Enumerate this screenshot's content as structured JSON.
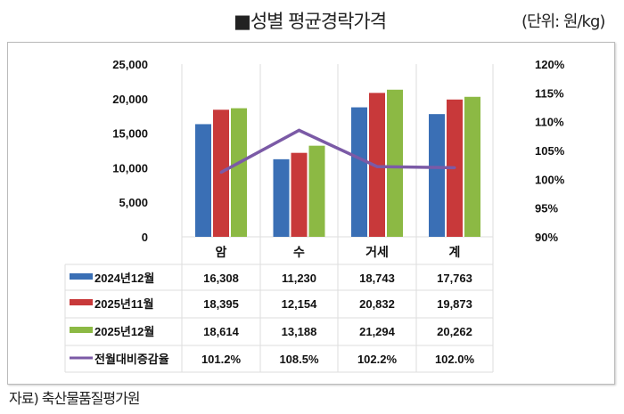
{
  "title": "■성별 평균경락가격",
  "unit": "(단위: 원/kg)",
  "source": "자료) 축산물품질평가원",
  "chart_data": {
    "type": "bar",
    "categories": [
      "암",
      "수",
      "거세",
      "계"
    ],
    "series": [
      {
        "name": "2024년12월",
        "type": "bar",
        "color": "#3a6fb5",
        "values": [
          16308,
          11230,
          18743,
          17763
        ],
        "labels": [
          "16,308",
          "11,230",
          "18,743",
          "17,763"
        ]
      },
      {
        "name": "2025년11월",
        "type": "bar",
        "color": "#c8393a",
        "values": [
          18395,
          12154,
          20832,
          19873
        ],
        "labels": [
          "18,395",
          "12,154",
          "20,832",
          "19,873"
        ]
      },
      {
        "name": "2025년12월",
        "type": "bar",
        "color": "#8cb944",
        "values": [
          18614,
          13188,
          21294,
          20262
        ],
        "labels": [
          "18,614",
          "13,188",
          "21,294",
          "20,262"
        ]
      },
      {
        "name": "전월대비증감율",
        "type": "line",
        "axis": "right",
        "color": "#7b5aa6",
        "values": [
          101.2,
          108.5,
          102.2,
          102.0
        ],
        "labels": [
          "101.2%",
          "108.5%",
          "102.2%",
          "102.0%"
        ]
      }
    ],
    "y_left": {
      "min": 0,
      "max": 25000,
      "ticks": [
        "0",
        "5,000",
        "10,000",
        "15,000",
        "20,000",
        "25,000"
      ]
    },
    "y_right": {
      "min": 90,
      "max": 120,
      "ticks": [
        "90%",
        "95%",
        "100%",
        "105%",
        "110%",
        "115%",
        "120%"
      ]
    },
    "grid": false,
    "legend": "data-table"
  }
}
